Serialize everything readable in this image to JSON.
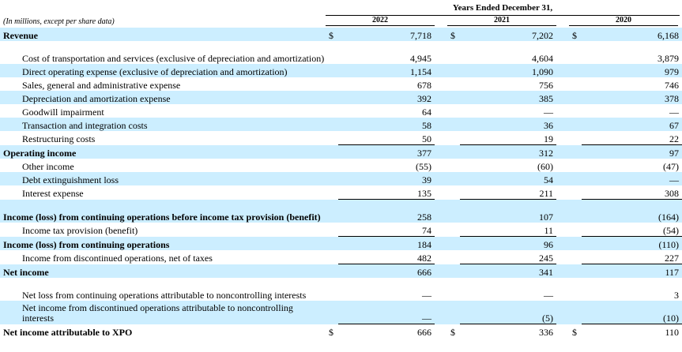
{
  "header": {
    "period_title": "Years Ended December 31,",
    "units_note": "(In millions, except per share data)",
    "years": [
      "2022",
      "2021",
      "2020"
    ]
  },
  "currency_symbol": "$",
  "rows": [
    {
      "label": "Revenue",
      "bold": true,
      "indent": false,
      "cur": true,
      "values": [
        "7,718",
        "7,202",
        "6,168"
      ],
      "h": 1
    },
    {
      "label": "Cost of transportation and services (exclusive of depreciation and amortization)",
      "bold": false,
      "indent": true,
      "cur": false,
      "values": [
        "4,945",
        "4,604",
        "3,879"
      ],
      "h": 2
    },
    {
      "label": "Direct operating expense (exclusive of depreciation and amortization)",
      "bold": false,
      "indent": true,
      "cur": false,
      "values": [
        "1,154",
        "1,090",
        "979"
      ],
      "h": 1
    },
    {
      "label": "Sales, general and administrative expense",
      "bold": false,
      "indent": true,
      "cur": false,
      "values": [
        "678",
        "756",
        "746"
      ],
      "h": 1
    },
    {
      "label": "Depreciation and amortization expense",
      "bold": false,
      "indent": true,
      "cur": false,
      "values": [
        "392",
        "385",
        "378"
      ],
      "h": 1
    },
    {
      "label": "Goodwill impairment",
      "bold": false,
      "indent": true,
      "cur": false,
      "values": [
        "64",
        "—",
        "—"
      ],
      "h": 1
    },
    {
      "label": "Transaction and integration costs",
      "bold": false,
      "indent": true,
      "cur": false,
      "values": [
        "58",
        "36",
        "67"
      ],
      "h": 1
    },
    {
      "label": "Restructuring costs",
      "bold": false,
      "indent": true,
      "cur": false,
      "values": [
        "50",
        "19",
        "22"
      ],
      "h": 1,
      "rule": true
    },
    {
      "label": "Operating income",
      "bold": true,
      "indent": false,
      "cur": false,
      "values": [
        "377",
        "312",
        "97"
      ],
      "h": 1
    },
    {
      "label": "Other income",
      "bold": false,
      "indent": true,
      "cur": false,
      "values": [
        "(55)",
        "(60)",
        "(47)"
      ],
      "h": 1
    },
    {
      "label": "Debt extinguishment loss",
      "bold": false,
      "indent": true,
      "cur": false,
      "values": [
        "39",
        "54",
        "—"
      ],
      "h": 1
    },
    {
      "label": "Interest expense",
      "bold": false,
      "indent": true,
      "cur": false,
      "values": [
        "135",
        "211",
        "308"
      ],
      "h": 1,
      "rule": true
    },
    {
      "label": "Income (loss) from continuing operations before income tax provision (benefit)",
      "bold": true,
      "indent": false,
      "cur": false,
      "values": [
        "258",
        "107",
        "(164)"
      ],
      "h": 2
    },
    {
      "label": "Income tax provision (benefit)",
      "bold": false,
      "indent": true,
      "cur": false,
      "values": [
        "74",
        "11",
        "(54)"
      ],
      "h": 1,
      "rule": true
    },
    {
      "label": "Income (loss) from continuing operations",
      "bold": true,
      "indent": false,
      "cur": false,
      "values": [
        "184",
        "96",
        "(110)"
      ],
      "h": 1
    },
    {
      "label": "Income from discontinued operations, net of taxes",
      "bold": false,
      "indent": true,
      "cur": false,
      "values": [
        "482",
        "245",
        "227"
      ],
      "h": 1,
      "rule": true
    },
    {
      "label": "Net income",
      "bold": true,
      "indent": false,
      "cur": false,
      "values": [
        "666",
        "341",
        "117"
      ],
      "h": 1
    },
    {
      "label": "Net loss from continuing operations attributable to noncontrolling interests",
      "bold": false,
      "indent": true,
      "cur": false,
      "values": [
        "—",
        "—",
        "3"
      ],
      "h": 2
    },
    {
      "label": "Net income from discontinued operations attributable to noncontrolling interests",
      "bold": false,
      "indent": true,
      "cur": false,
      "values": [
        "—",
        "(5)",
        "(10)"
      ],
      "h": 2,
      "rule": true
    },
    {
      "label": "Net income attributable to XPO",
      "bold": true,
      "indent": false,
      "cur": true,
      "values": [
        "666",
        "336",
        "110"
      ],
      "h": 1
    }
  ]
}
